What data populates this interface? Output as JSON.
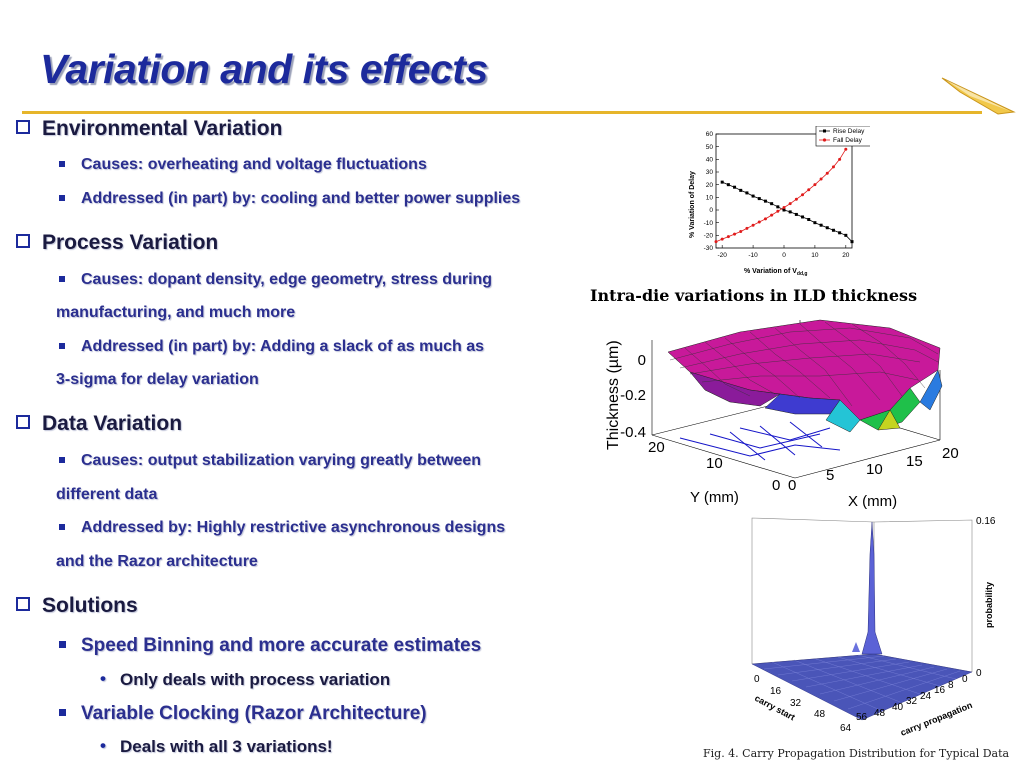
{
  "slide": {
    "title": "Variation and its effects",
    "sections": [
      {
        "heading": "Environmental Variation",
        "items": [
          {
            "text": "Causes: overheating and voltage fluctuations"
          },
          {
            "text": "Addressed (in part) by: cooling and better power supplies"
          }
        ]
      },
      {
        "heading": "Process Variation",
        "items": [
          {
            "line1": "Causes: dopant density, edge geometry, stress during",
            "line2": "manufacturing, and much more"
          },
          {
            "line1": "Addressed (in part) by: Adding a slack of as much as",
            "line2": "3-sigma for delay variation"
          }
        ]
      },
      {
        "heading": "Data Variation",
        "items": [
          {
            "line1": "Causes: output stabilization varying greatly between",
            "line2": "different data"
          },
          {
            "line1": "Addressed by: Highly restrictive asynchronous designs",
            "line2": "and the Razor architecture"
          }
        ]
      },
      {
        "heading": "Solutions",
        "items": [
          {
            "text": "Speed Binning and more accurate estimates",
            "sub": "Only deals with process variation"
          },
          {
            "text": "Variable Clocking (Razor Architecture)",
            "sub": "Deals with all 3 variations!"
          }
        ]
      }
    ]
  },
  "figures": {
    "delay_chart": {
      "legend": [
        "Rise Delay",
        "Fall Delay"
      ],
      "xlabel": "% Variation of V",
      "xlabel_sub": "dd,g",
      "ylabel": "% Variation of Delay"
    },
    "ild_caption": "Intra-die variations in ILD thickness",
    "ild_plot": {
      "zlabel": "Thickness (µm)",
      "ylabel": "Y (mm)",
      "xlabel": "X (mm)",
      "z_ticks": [
        "0",
        "-0.2",
        "-0.4"
      ],
      "y_ticks": [
        "20",
        "10",
        "0"
      ],
      "x_ticks": [
        "0",
        "5",
        "10",
        "15",
        "20"
      ]
    },
    "carry_plot": {
      "zlabel": "probability",
      "z_ticks": [
        "0.16",
        "0"
      ],
      "carry_start_label": "carry start",
      "carry_prop_label": "carry propagation",
      "carry_start_ticks": [
        "0",
        "16",
        "32",
        "48",
        "64"
      ],
      "carry_prop_ticks": [
        "64",
        "56",
        "48",
        "40",
        "32",
        "24",
        "16",
        "8",
        "0"
      ]
    },
    "carry_caption": "Fig. 4.  Carry Propagation Distribution for Typical Data"
  },
  "chart_data": {
    "type": "line",
    "xlabel": "% Variation of Vdd,g",
    "ylabel": "% Variation of Delay",
    "xlim": [
      -22,
      22
    ],
    "ylim": [
      -30,
      60
    ],
    "x_ticks": [
      -20,
      -10,
      0,
      10,
      20
    ],
    "y_ticks": [
      60,
      50,
      40,
      30,
      20,
      10,
      0,
      -10,
      -20,
      -30
    ],
    "legend_position": "top-right",
    "series": [
      {
        "name": "Rise Delay",
        "color": "#000000",
        "x": [
          -20,
          -18,
          -16,
          -14,
          -12,
          -10,
          -8,
          -6,
          -4,
          -2,
          0,
          2,
          4,
          6,
          8,
          10,
          12,
          14,
          16,
          18,
          20,
          22
        ],
        "values": [
          22,
          20,
          18,
          15.5,
          13.5,
          11,
          9,
          7,
          5,
          2.5,
          0,
          -1.5,
          -3.5,
          -5.5,
          -7.5,
          -10,
          -12,
          -14,
          -16,
          -18,
          -20,
          -25
        ]
      },
      {
        "name": "Fall Delay",
        "color": "#e01b1b",
        "x": [
          -22,
          -20,
          -18,
          -16,
          -14,
          -12,
          -10,
          -8,
          -6,
          -4,
          -2,
          0,
          2,
          4,
          6,
          8,
          10,
          12,
          14,
          16,
          18,
          20
        ],
        "values": [
          -25,
          -23,
          -21,
          -19,
          -17,
          -14.5,
          -12,
          -9.5,
          -7,
          -4,
          -1,
          2,
          5,
          8.5,
          12,
          16,
          20,
          24.5,
          29,
          34,
          40,
          48
        ]
      }
    ]
  },
  "colors": {
    "title": "#1c2a9c",
    "rule": "#e6b52a",
    "bullet": "#1c2a9c"
  }
}
